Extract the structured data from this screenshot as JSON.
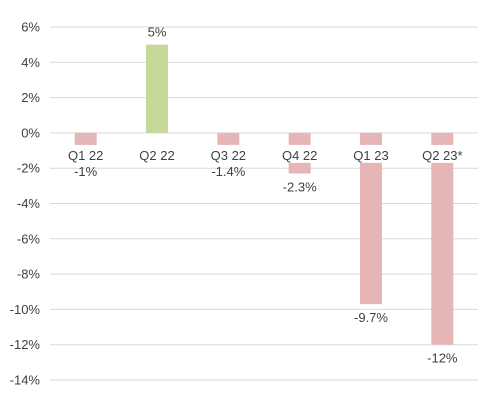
{
  "chart_data": {
    "type": "bar",
    "categories": [
      "Q1 22",
      "Q2 22",
      "Q3 22",
      "Q4 22",
      "Q1 23",
      "Q2 23*"
    ],
    "values": [
      -1,
      5,
      -1.4,
      -2.3,
      -9.7,
      -12
    ],
    "data_labels": [
      "-1%",
      "5%",
      "-1.4%",
      "-2.3%",
      "-9.7%",
      "-12%"
    ],
    "y_tick_values": [
      6,
      4,
      2,
      0,
      -2,
      -4,
      -6,
      -8,
      -10,
      -12,
      -14
    ],
    "y_tick_labels": [
      "6%",
      "4%",
      "2%",
      "0%",
      "-2%",
      "-4%",
      "-6%",
      "-8%",
      "-10%",
      "-12%",
      "-14%"
    ],
    "ylim": [
      -14,
      6
    ],
    "grid": true,
    "colors": {
      "positive": "#c5d99b",
      "negative": "#e6b5b5",
      "grid": "#d9d9d9",
      "text": "#404040"
    }
  }
}
